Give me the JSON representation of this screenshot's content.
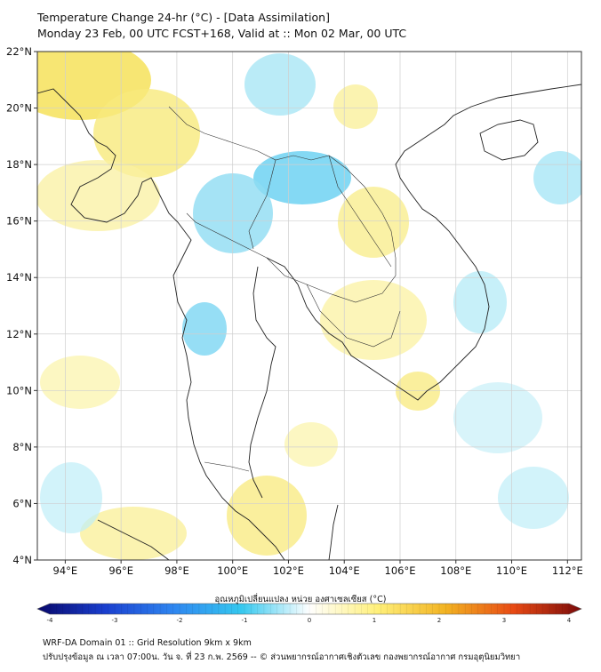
{
  "header": {
    "title_line1": "Temperature Change 24-hr (°C) - [Data Assimilation]",
    "title_line2": "Monday 23 Feb, 00 UTC FCST+168, Valid at :: Mon 02 Mar, 00 UTC"
  },
  "map": {
    "lat_ticks": [
      "22°N",
      "20°N",
      "18°N",
      "16°N",
      "14°N",
      "12°N",
      "10°N",
      "8°N",
      "6°N",
      "4°N"
    ],
    "lon_ticks": [
      "94°E",
      "96°E",
      "98°E",
      "100°E",
      "102°E",
      "104°E",
      "106°E",
      "108°E",
      "110°E",
      "112°E"
    ],
    "lat_range": [
      4,
      22
    ],
    "lon_range": [
      93,
      112.5
    ]
  },
  "colorbar": {
    "label": "อุณหภูมิเปลี่ยนแปลง หน่วย องศาเซลเซียส (°C)",
    "tick_labels": [
      "-4",
      "-3",
      "-2",
      "-1",
      "0",
      "1",
      "2",
      "3",
      "4"
    ],
    "range": [
      -4,
      4
    ],
    "colors": [
      "#08086b",
      "#1a3fcf",
      "#2f86f0",
      "#35c8ef",
      "#ffffff",
      "#fff07a",
      "#f2b322",
      "#e84a14",
      "#7a0a0a"
    ]
  },
  "footer": {
    "line1": "WRF-DA Domain 01 :: Grid Resolution 9km x 9km",
    "line2": "ปรับปรุงข้อมูล ณ เวลา 07:00น. วัน จ. ที่ 23 ก.พ. 2569 -- © ส่วนพยากรณ์อากาศเชิงตัวเลข กองพยากรณ์อากาศ กรมอุตุนิยมวิทยา"
  }
}
